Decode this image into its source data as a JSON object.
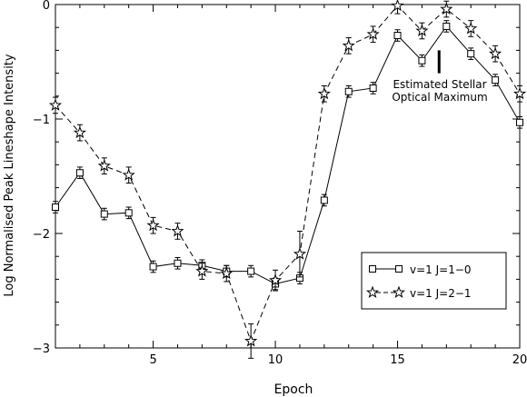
{
  "chart_data": {
    "type": "line",
    "xlabel": "Epoch",
    "ylabel": "Log Normalised Peak Lineshape Intensity",
    "xlim": [
      1,
      20
    ],
    "ylim": [
      -3,
      0
    ],
    "x_ticks": [
      5,
      10,
      15,
      20
    ],
    "y_ticks": [
      0,
      -1,
      -2,
      -3
    ],
    "x_tick_labels": [
      "5",
      "10",
      "15",
      "20"
    ],
    "y_tick_labels": [
      "0",
      "−1",
      "−2",
      "−3"
    ],
    "grid": false,
    "legend_position": "bottom-right",
    "annotation": {
      "lines": [
        "Estimated Stellar",
        "Optical Maximum"
      ],
      "x": 16.7,
      "y_range": [
        -0.6,
        -0.4
      ]
    },
    "series": [
      {
        "name": "v=1 J=1−0",
        "marker": "square",
        "linestyle": "solid",
        "x": [
          1,
          2,
          3,
          4,
          5,
          6,
          7,
          8,
          9,
          10,
          11,
          12,
          13,
          14,
          15,
          16,
          17,
          18,
          19,
          20
        ],
        "y": [
          -1.77,
          -1.47,
          -1.83,
          -1.82,
          -2.29,
          -2.26,
          -2.28,
          -2.33,
          -2.33,
          -2.44,
          -2.39,
          -1.71,
          -0.76,
          -0.73,
          -0.27,
          -0.49,
          -0.19,
          -0.43,
          -0.66,
          -1.03
        ],
        "err": [
          0.05,
          0.05,
          0.05,
          0.05,
          0.05,
          0.05,
          0.05,
          0.05,
          0.05,
          0.05,
          0.05,
          0.05,
          0.05,
          0.05,
          0.05,
          0.05,
          0.05,
          0.05,
          0.05,
          0.05
        ]
      },
      {
        "name": "v=1 J=2−1",
        "marker": "star",
        "linestyle": "dashed",
        "x": [
          1,
          2,
          3,
          4,
          5,
          6,
          7,
          8,
          9,
          10,
          11,
          12,
          13,
          14,
          15,
          16,
          17,
          18,
          19,
          20
        ],
        "y": [
          -0.88,
          -1.12,
          -1.41,
          -1.49,
          -1.93,
          -1.98,
          -2.33,
          -2.35,
          -2.94,
          -2.41,
          -2.18,
          -0.78,
          -0.36,
          -0.26,
          -0.01,
          -0.23,
          -0.04,
          -0.21,
          -0.43,
          -0.78
        ],
        "err": [
          0.07,
          0.07,
          0.07,
          0.07,
          0.07,
          0.07,
          0.07,
          0.07,
          0.15,
          0.09,
          0.2,
          0.07,
          0.07,
          0.07,
          0.07,
          0.07,
          0.07,
          0.07,
          0.07,
          0.07
        ]
      }
    ]
  }
}
